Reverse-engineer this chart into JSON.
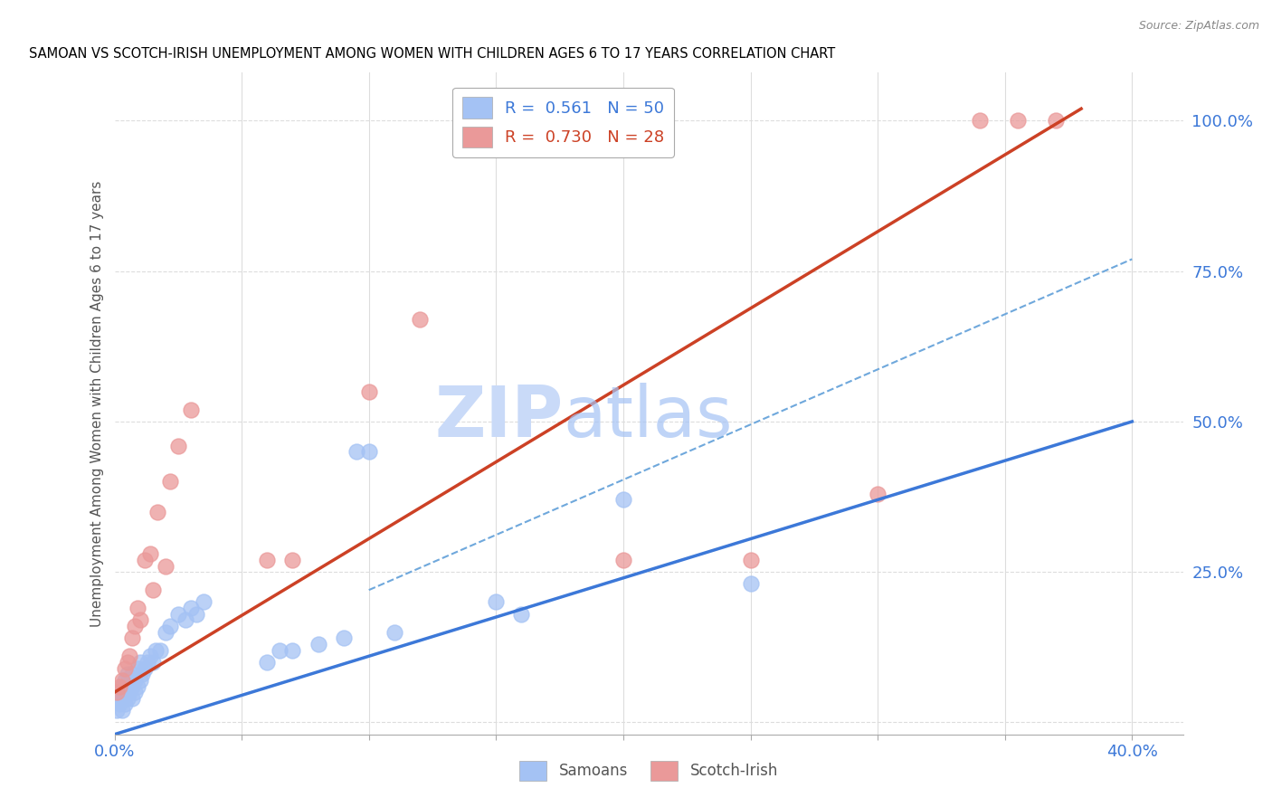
{
  "title": "SAMOAN VS SCOTCH-IRISH UNEMPLOYMENT AMONG WOMEN WITH CHILDREN AGES 6 TO 17 YEARS CORRELATION CHART",
  "source": "Source: ZipAtlas.com",
  "ylabel": "Unemployment Among Women with Children Ages 6 to 17 years",
  "xlim": [
    0.0,
    0.42
  ],
  "ylim": [
    -0.02,
    1.08
  ],
  "xticks": [
    0.0,
    0.05,
    0.1,
    0.15,
    0.2,
    0.25,
    0.3,
    0.35,
    0.4
  ],
  "yticks_right": [
    0.0,
    0.25,
    0.5,
    0.75,
    1.0
  ],
  "yticklabels_right": [
    "",
    "25.0%",
    "50.0%",
    "75.0%",
    "100.0%"
  ],
  "grid_color": "#dddddd",
  "background_color": "#ffffff",
  "samoans_color": "#a4c2f4",
  "scotch_irish_color": "#ea9999",
  "samoans_line_color": "#3c78d8",
  "scotch_irish_line_color": "#cc4125",
  "dashed_line_color": "#6fa8dc",
  "R_samoans": 0.561,
  "N_samoans": 50,
  "R_scotch_irish": 0.73,
  "N_scotch_irish": 28,
  "samoans_x": [
    0.001,
    0.001,
    0.002,
    0.002,
    0.003,
    0.003,
    0.003,
    0.004,
    0.004,
    0.004,
    0.005,
    0.005,
    0.005,
    0.006,
    0.006,
    0.007,
    0.007,
    0.007,
    0.008,
    0.008,
    0.009,
    0.009,
    0.01,
    0.01,
    0.011,
    0.012,
    0.013,
    0.014,
    0.015,
    0.016,
    0.018,
    0.02,
    0.022,
    0.025,
    0.028,
    0.03,
    0.032,
    0.035,
    0.06,
    0.065,
    0.07,
    0.08,
    0.09,
    0.095,
    0.1,
    0.11,
    0.15,
    0.16,
    0.2,
    0.25
  ],
  "samoans_y": [
    0.02,
    0.04,
    0.03,
    0.05,
    0.02,
    0.04,
    0.06,
    0.03,
    0.05,
    0.07,
    0.04,
    0.06,
    0.08,
    0.05,
    0.07,
    0.04,
    0.06,
    0.08,
    0.05,
    0.07,
    0.06,
    0.09,
    0.07,
    0.1,
    0.08,
    0.09,
    0.1,
    0.11,
    0.1,
    0.12,
    0.12,
    0.15,
    0.16,
    0.18,
    0.17,
    0.19,
    0.18,
    0.2,
    0.1,
    0.12,
    0.12,
    0.13,
    0.14,
    0.45,
    0.45,
    0.15,
    0.2,
    0.18,
    0.37,
    0.23
  ],
  "scotch_irish_x": [
    0.001,
    0.002,
    0.003,
    0.004,
    0.005,
    0.006,
    0.007,
    0.008,
    0.009,
    0.01,
    0.012,
    0.014,
    0.015,
    0.017,
    0.02,
    0.022,
    0.025,
    0.03,
    0.06,
    0.07,
    0.1,
    0.12,
    0.2,
    0.25,
    0.3,
    0.34,
    0.355,
    0.37
  ],
  "scotch_irish_y": [
    0.05,
    0.06,
    0.07,
    0.09,
    0.1,
    0.11,
    0.14,
    0.16,
    0.19,
    0.17,
    0.27,
    0.28,
    0.22,
    0.35,
    0.26,
    0.4,
    0.46,
    0.52,
    0.27,
    0.27,
    0.55,
    0.67,
    0.27,
    0.27,
    0.38,
    1.0,
    1.0,
    1.0
  ],
  "samoans_line_x": [
    0.0,
    0.4
  ],
  "samoans_line_y": [
    -0.02,
    0.5
  ],
  "scotch_irish_line_x": [
    0.0,
    0.38
  ],
  "scotch_irish_line_y": [
    0.05,
    1.02
  ],
  "dashed_line_x": [
    0.1,
    0.4
  ],
  "dashed_line_y": [
    0.22,
    0.77
  ],
  "watermark_zip": "ZIP",
  "watermark_atlas": "atlas",
  "watermark_color": "#c9daf8",
  "legend_samoans_label": "Samoans",
  "legend_scotch_irish_label": "Scotch-Irish",
  "axis_label_color": "#3c78d8",
  "title_color": "#000000"
}
